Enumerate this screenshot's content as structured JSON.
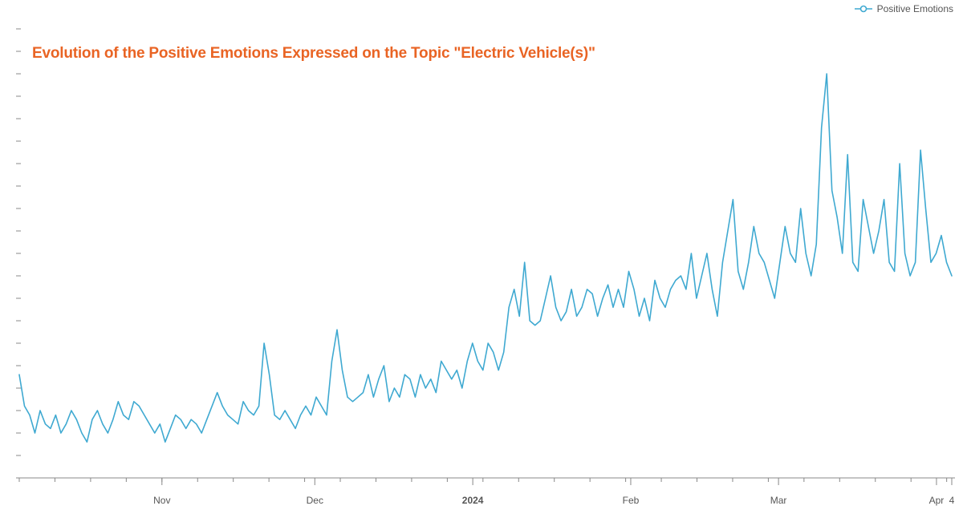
{
  "chart": {
    "type": "line",
    "title": "Evolution of the Positive Emotions Expressed on the Topic \"Electric Vehicle(s)\"",
    "title_fontsize": 19,
    "title_color": "#e96424",
    "background_color": "#ffffff",
    "axis_color": "#888888",
    "tick_color": "#888888",
    "line_color": "#3fa9d1",
    "line_width": 1.6,
    "marker": {
      "style": "circle-open",
      "size": 4,
      "stroke": "#3fa9d1",
      "fill": "#ffffff"
    },
    "legend": {
      "label": "Positive Emotions",
      "position": "top-right",
      "color_swatch": "#3fa9d1"
    },
    "x_axis": {
      "type": "date",
      "domain_start": "2023-10-04",
      "domain_end": "2024-04-04",
      "ticks_major": [
        {
          "label": "Nov",
          "date": "2023-11-01",
          "bold": false
        },
        {
          "label": "Dec",
          "date": "2023-12-01",
          "bold": false
        },
        {
          "label": "2024",
          "date": "2024-01-01",
          "bold": true
        },
        {
          "label": "Feb",
          "date": "2024-02-01",
          "bold": false
        },
        {
          "label": "Mar",
          "date": "2024-03-01",
          "bold": false
        },
        {
          "label": "Apr",
          "date": "2024-04-01",
          "bold": false
        },
        {
          "label": "4",
          "date": "2024-04-04",
          "bold": false
        }
      ],
      "minor_tick_interval_days": 7
    },
    "y_axis": {
      "domain": [
        0,
        100
      ],
      "tick_step": 5,
      "tick_marks_only": true,
      "labels_visible": false
    },
    "series": [
      {
        "name": "Positive Emotions",
        "color": "#3fa9d1",
        "values": [
          23,
          16,
          14,
          10,
          15,
          12,
          11,
          14,
          10,
          12,
          15,
          13,
          10,
          8,
          13,
          15,
          12,
          10,
          13,
          17,
          14,
          13,
          17,
          16,
          14,
          12,
          10,
          12,
          8,
          11,
          14,
          13,
          11,
          13,
          12,
          10,
          13,
          16,
          19,
          16,
          14,
          13,
          12,
          17,
          15,
          14,
          16,
          30,
          23,
          14,
          13,
          15,
          13,
          11,
          14,
          16,
          14,
          18,
          16,
          14,
          26,
          33,
          24,
          18,
          17,
          18,
          19,
          23,
          18,
          22,
          25,
          17,
          20,
          18,
          23,
          22,
          18,
          23,
          20,
          22,
          19,
          26,
          24,
          22,
          24,
          20,
          26,
          30,
          26,
          24,
          30,
          28,
          24,
          28,
          38,
          42,
          36,
          48,
          35,
          34,
          35,
          40,
          45,
          38,
          35,
          37,
          42,
          36,
          38,
          42,
          41,
          36,
          40,
          43,
          38,
          42,
          38,
          46,
          42,
          36,
          40,
          35,
          44,
          40,
          38,
          42,
          44,
          45,
          42,
          50,
          40,
          45,
          50,
          42,
          36,
          48,
          55,
          62,
          46,
          42,
          48,
          56,
          50,
          48,
          44,
          40,
          48,
          56,
          50,
          48,
          60,
          50,
          45,
          52,
          78,
          90,
          64,
          58,
          50,
          72,
          48,
          46,
          62,
          56,
          50,
          55,
          62,
          48,
          46,
          70,
          50,
          45,
          48,
          73,
          60,
          48,
          50,
          54,
          48,
          45
        ]
      }
    ]
  }
}
